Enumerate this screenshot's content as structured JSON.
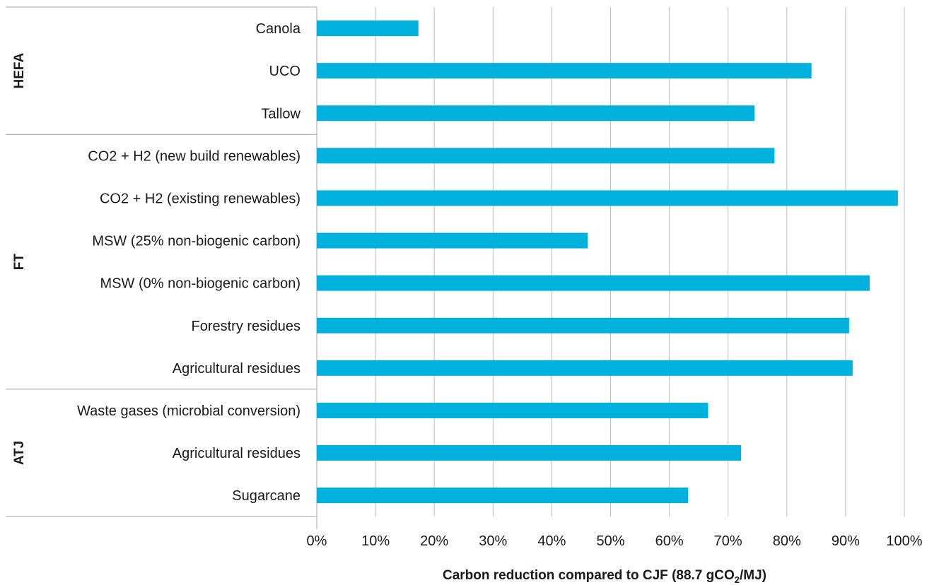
{
  "chart_data": {
    "type": "bar",
    "orientation": "horizontal",
    "groups": [
      {
        "name": "HEFA",
        "categories": [
          "Canola",
          "UCO",
          "Tallow"
        ],
        "values": [
          17.3,
          84.2,
          74.5
        ]
      },
      {
        "name": "FT",
        "categories": [
          "CO2 + H2 (new build renewables)",
          "CO2 + H2 (existing renewables)",
          "MSW (25% non-biogenic carbon)",
          "MSW (0% non-biogenic carbon)",
          "Forestry residues",
          "Agricultural residues"
        ],
        "values": [
          77.9,
          98.9,
          46.1,
          94.1,
          90.6,
          91.2
        ]
      },
      {
        "name": "ATJ",
        "categories": [
          "Waste gases (microbial conversion)",
          "Agricultural residues",
          "Sugarcane"
        ],
        "values": [
          66.6,
          72.2,
          63.2
        ]
      }
    ],
    "x_ticks": [
      "0%",
      "10%",
      "20%",
      "30%",
      "40%",
      "50%",
      "60%",
      "70%",
      "80%",
      "90%",
      "100%"
    ],
    "xlim": [
      0,
      100
    ],
    "xlabel_main": "Carbon reduction compared to CJF (88.7 gCO",
    "xlabel_sub": "2",
    "xlabel_end": "/MJ)",
    "bar_color": "#00b0dd",
    "grid": true,
    "legend": "none"
  }
}
